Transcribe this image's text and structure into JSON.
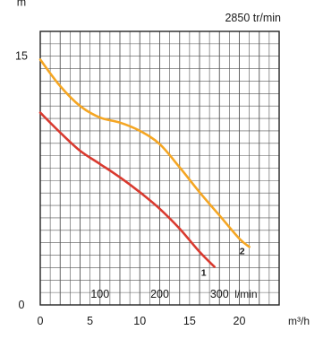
{
  "chart_data": {
    "type": "line",
    "title": "",
    "rpm_label": "2850 tr/min",
    "ylabel": "m",
    "x_unit_flow": "m³/h",
    "x_unit_lmin": "l/min",
    "xlim": [
      0,
      24
    ],
    "ylim": [
      0,
      16.5
    ],
    "grid": true,
    "x_ticks_m3h": [
      0,
      5,
      10,
      15,
      20
    ],
    "x_ticks_lmin": [
      100,
      200,
      300
    ],
    "y_ticks": [
      0,
      15
    ],
    "series": [
      {
        "name": "1",
        "color": "#d93a2f",
        "x": [
          0,
          2,
          4,
          6,
          8,
          10,
          12,
          14,
          16,
          17.5
        ],
        "y": [
          11.6,
          10.4,
          9.3,
          8.5,
          7.7,
          6.8,
          5.8,
          4.6,
          3.2,
          2.3
        ]
      },
      {
        "name": "2",
        "color": "#f5a623",
        "x": [
          0,
          2,
          4,
          6,
          8,
          10,
          12,
          14,
          16,
          18,
          20,
          21
        ],
        "y": [
          14.8,
          13.2,
          12.0,
          11.3,
          11.0,
          10.5,
          9.7,
          8.3,
          6.8,
          5.4,
          4.0,
          3.5
        ]
      }
    ]
  }
}
